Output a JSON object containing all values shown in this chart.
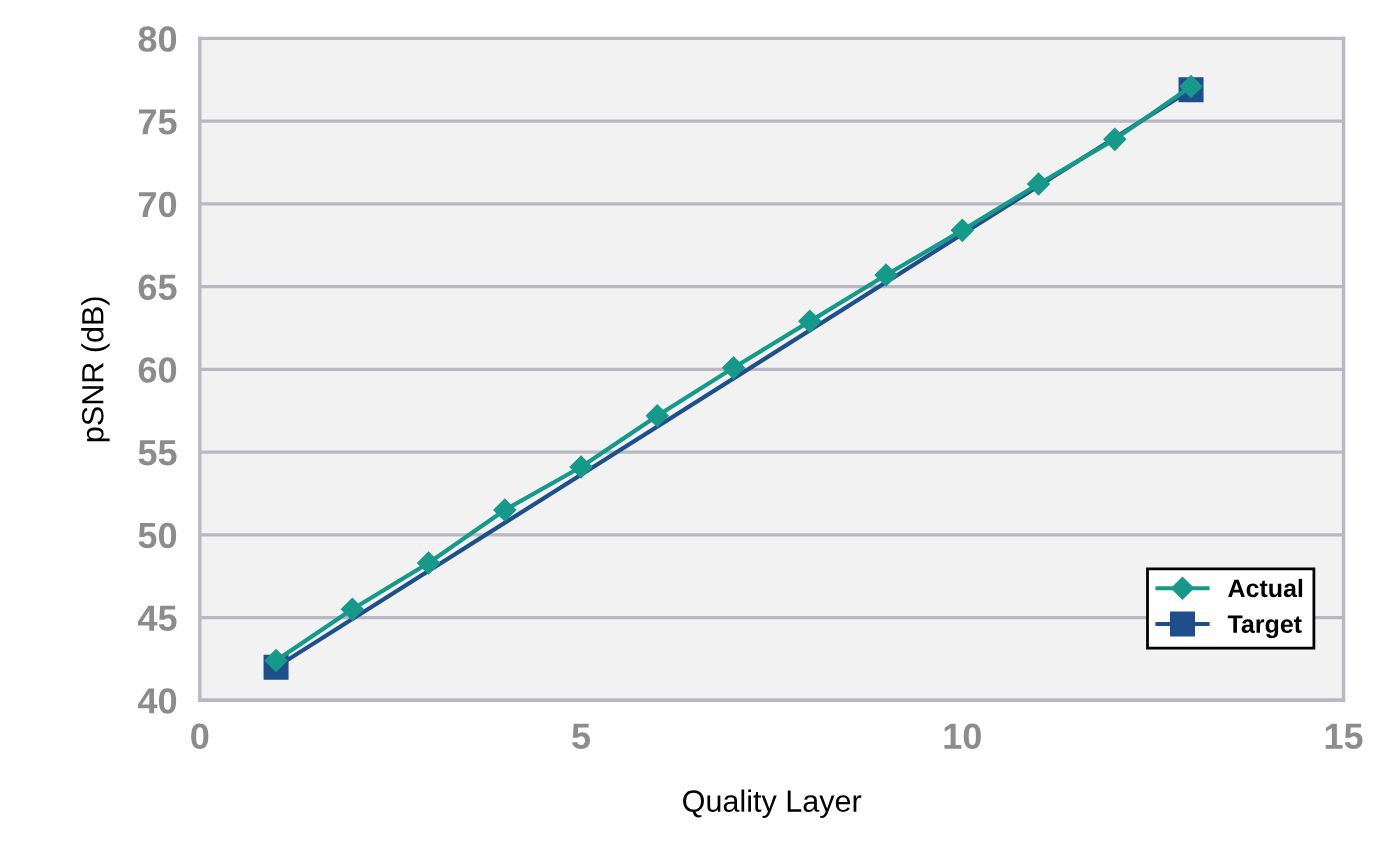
{
  "chart_data": {
    "type": "line",
    "xlabel": "Quality Layer",
    "ylabel": "pSNR (dB)",
    "xlim": [
      0,
      15
    ],
    "xticks": [
      0,
      5,
      10,
      15
    ],
    "ylim": [
      40,
      80
    ],
    "yticks": [
      40,
      45,
      50,
      55,
      60,
      65,
      70,
      75,
      80
    ],
    "grid": "y",
    "legend": "bottom right",
    "series": [
      {
        "name": "Actual",
        "color": "#16998a",
        "marker": "diamond",
        "x": [
          1,
          2,
          3,
          4,
          5,
          6,
          7,
          8,
          9,
          10,
          11,
          12,
          13
        ],
        "values": [
          42.4,
          45.5,
          48.3,
          51.5,
          54.1,
          57.2,
          60.1,
          62.9,
          65.7,
          68.4,
          71.2,
          73.9,
          77.1
        ]
      },
      {
        "name": "Target",
        "color": "#1f4e8c",
        "marker": "square",
        "x": [
          1,
          13
        ],
        "values": [
          42.0,
          76.9
        ]
      }
    ]
  }
}
